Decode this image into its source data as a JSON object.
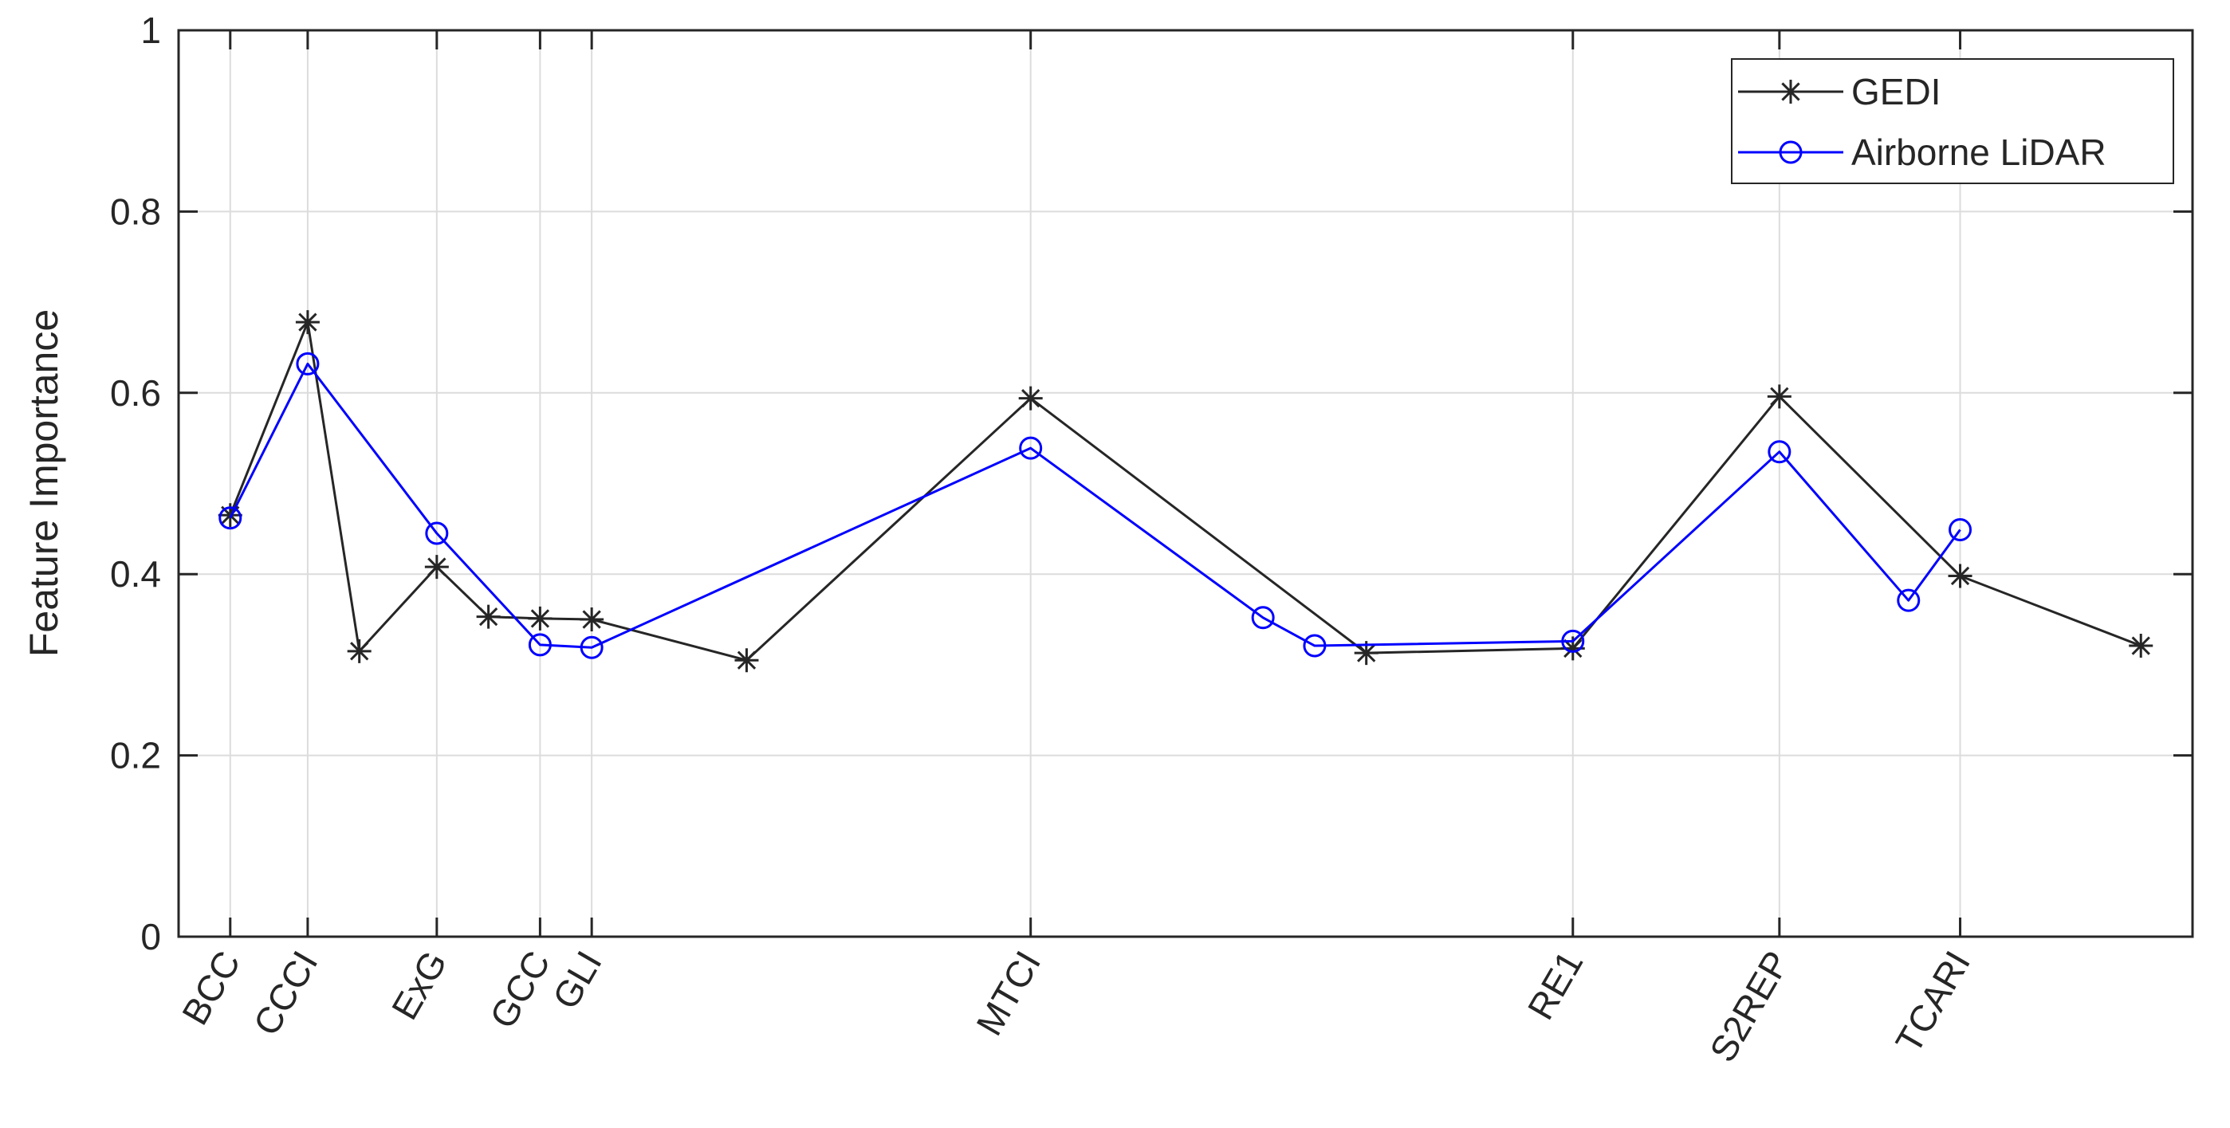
{
  "chart_data": {
    "type": "line",
    "ylabel": "Feature Importance",
    "xlabel": "",
    "ylim": [
      0,
      1
    ],
    "yticks": [
      0,
      0.2,
      0.4,
      0.6,
      0.8,
      1
    ],
    "ytick_labels": [
      "0",
      "0.2",
      "0.4",
      "0.6",
      "0.8",
      "1"
    ],
    "xlim": [
      -1,
      38
    ],
    "xticks": [
      0,
      1.5,
      4,
      6,
      7,
      15.5,
      26,
      30,
      33.5
    ],
    "xtick_labels": [
      "BCC",
      "CCCI",
      "ExG",
      "GCC",
      "GLI",
      "MTCI",
      "RE1",
      "S2REP",
      "TCARI"
    ],
    "grid": true,
    "legend_position": "top-right",
    "colors": {
      "GEDI": "#262626",
      "Airborne LiDAR": "#0000ff"
    },
    "series": [
      {
        "name": "GEDI",
        "marker": "asterisk",
        "x": [
          0,
          1.5,
          2.5,
          4,
          5,
          6,
          7,
          10,
          15.5,
          22,
          26,
          30,
          33.5,
          37
        ],
        "y": [
          0.465,
          0.678,
          0.315,
          0.408,
          0.353,
          0.351,
          0.35,
          0.305,
          0.594,
          0.313,
          0.318,
          0.596,
          0.398,
          0.321
        ]
      },
      {
        "name": "Airborne LiDAR",
        "marker": "circle",
        "x": [
          0,
          1.5,
          4,
          6,
          7,
          15.5,
          20,
          21,
          26,
          30,
          32.5,
          33.5
        ],
        "y": [
          0.462,
          0.632,
          0.445,
          0.322,
          0.319,
          0.539,
          0.352,
          0.321,
          0.326,
          0.535,
          0.371,
          0.449
        ]
      }
    ]
  }
}
